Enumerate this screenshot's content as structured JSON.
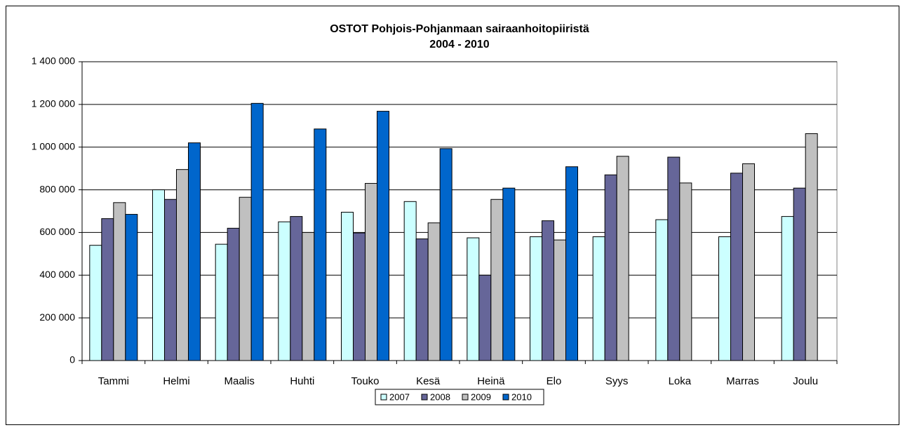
{
  "chart_data": {
    "type": "bar",
    "title": "OSTOT Pohjois-Pohjanmaan sairaanhoitopiiristä",
    "subtitle": "2004 - 2010",
    "categories": [
      "Tammi",
      "Helmi",
      "Maalis",
      "Huhti",
      "Touko",
      "Kesä",
      "Heinä",
      "Elo",
      "Syys",
      "Loka",
      "Marras",
      "Joulu"
    ],
    "series": [
      {
        "name": "2007",
        "color": "#ccffff",
        "values": [
          540000,
          800000,
          545000,
          650000,
          695000,
          745000,
          575000,
          580000,
          580000,
          660000,
          580000,
          675000
        ]
      },
      {
        "name": "2008",
        "color": "#666699",
        "values": [
          665000,
          755000,
          620000,
          675000,
          598000,
          570000,
          400000,
          655000,
          870000,
          953000,
          878000,
          808000
        ]
      },
      {
        "name": "2009",
        "color": "#c0c0c0",
        "values": [
          740000,
          895000,
          765000,
          600000,
          830000,
          645000,
          755000,
          565000,
          957000,
          832000,
          922000,
          1063000
        ]
      },
      {
        "name": "2010",
        "color": "#0066cc",
        "values": [
          685000,
          1020000,
          1205000,
          1085000,
          1168000,
          993000,
          808000,
          908000,
          null,
          null,
          null,
          null
        ]
      }
    ],
    "ylim": [
      0,
      1400000
    ],
    "yticks": [
      0,
      {
        "value": 200000,
        "label": "200 000"
      },
      {
        "value": 400000,
        "label": "400 000"
      },
      {
        "value": 600000,
        "label": "600 000"
      },
      {
        "value": 800000,
        "label": "800 000"
      },
      {
        "value": 1000000,
        "label": "1 000 000"
      },
      {
        "value": 1200000,
        "label": "1 200 000"
      },
      {
        "value": 1400000,
        "label": "1 400 000"
      }
    ],
    "grid": true,
    "legend": "bottom"
  }
}
